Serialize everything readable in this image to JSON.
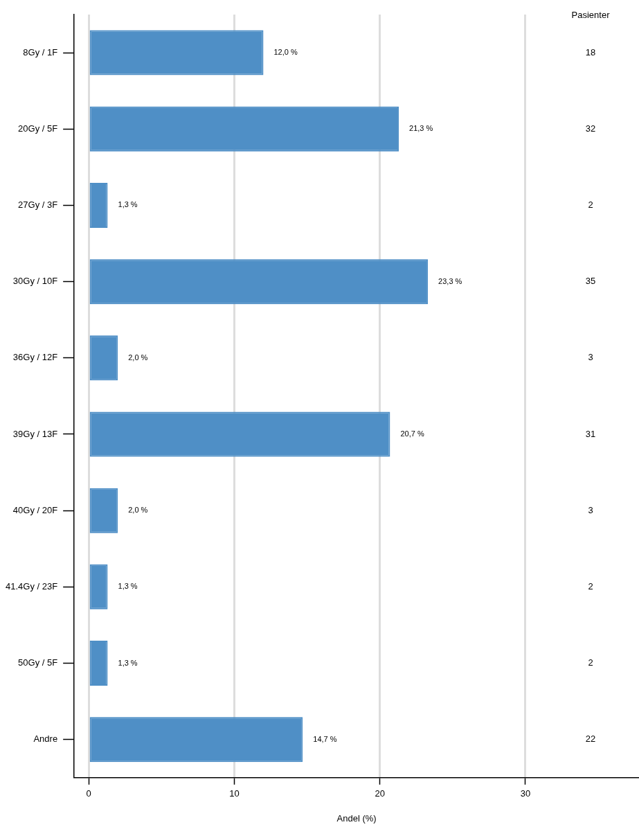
{
  "chart_data": {
    "type": "bar",
    "orientation": "horizontal",
    "xlabel": "Andel (%)",
    "categories": [
      "8Gy / 1F",
      "20Gy / 5F",
      "27Gy / 3F",
      "30Gy / 10F",
      "36Gy / 12F",
      "39Gy / 13F",
      "40Gy / 20F",
      "41.4Gy / 23F",
      "50Gy / 5F",
      "Andre"
    ],
    "values": [
      12.0,
      21.3,
      1.3,
      23.3,
      2.0,
      20.7,
      2.0,
      1.3,
      1.3,
      14.7
    ],
    "value_labels": [
      "12,0 %",
      "21,3 %",
      "1,3 %",
      "23,3 %",
      "2,0 %",
      "20,7 %",
      "2,0 %",
      "1,3 %",
      "1,3 %",
      "14,7 %"
    ],
    "color": "#4f8fc6",
    "xlim": [
      -1,
      37.8
    ],
    "xticks": [
      0,
      10,
      20,
      30
    ],
    "grid": "x",
    "legend": false,
    "annotations": [
      "Pasienter",
      "18",
      "32",
      "2",
      "35",
      "3",
      "31",
      "3",
      "2",
      "2",
      "22"
    ]
  }
}
